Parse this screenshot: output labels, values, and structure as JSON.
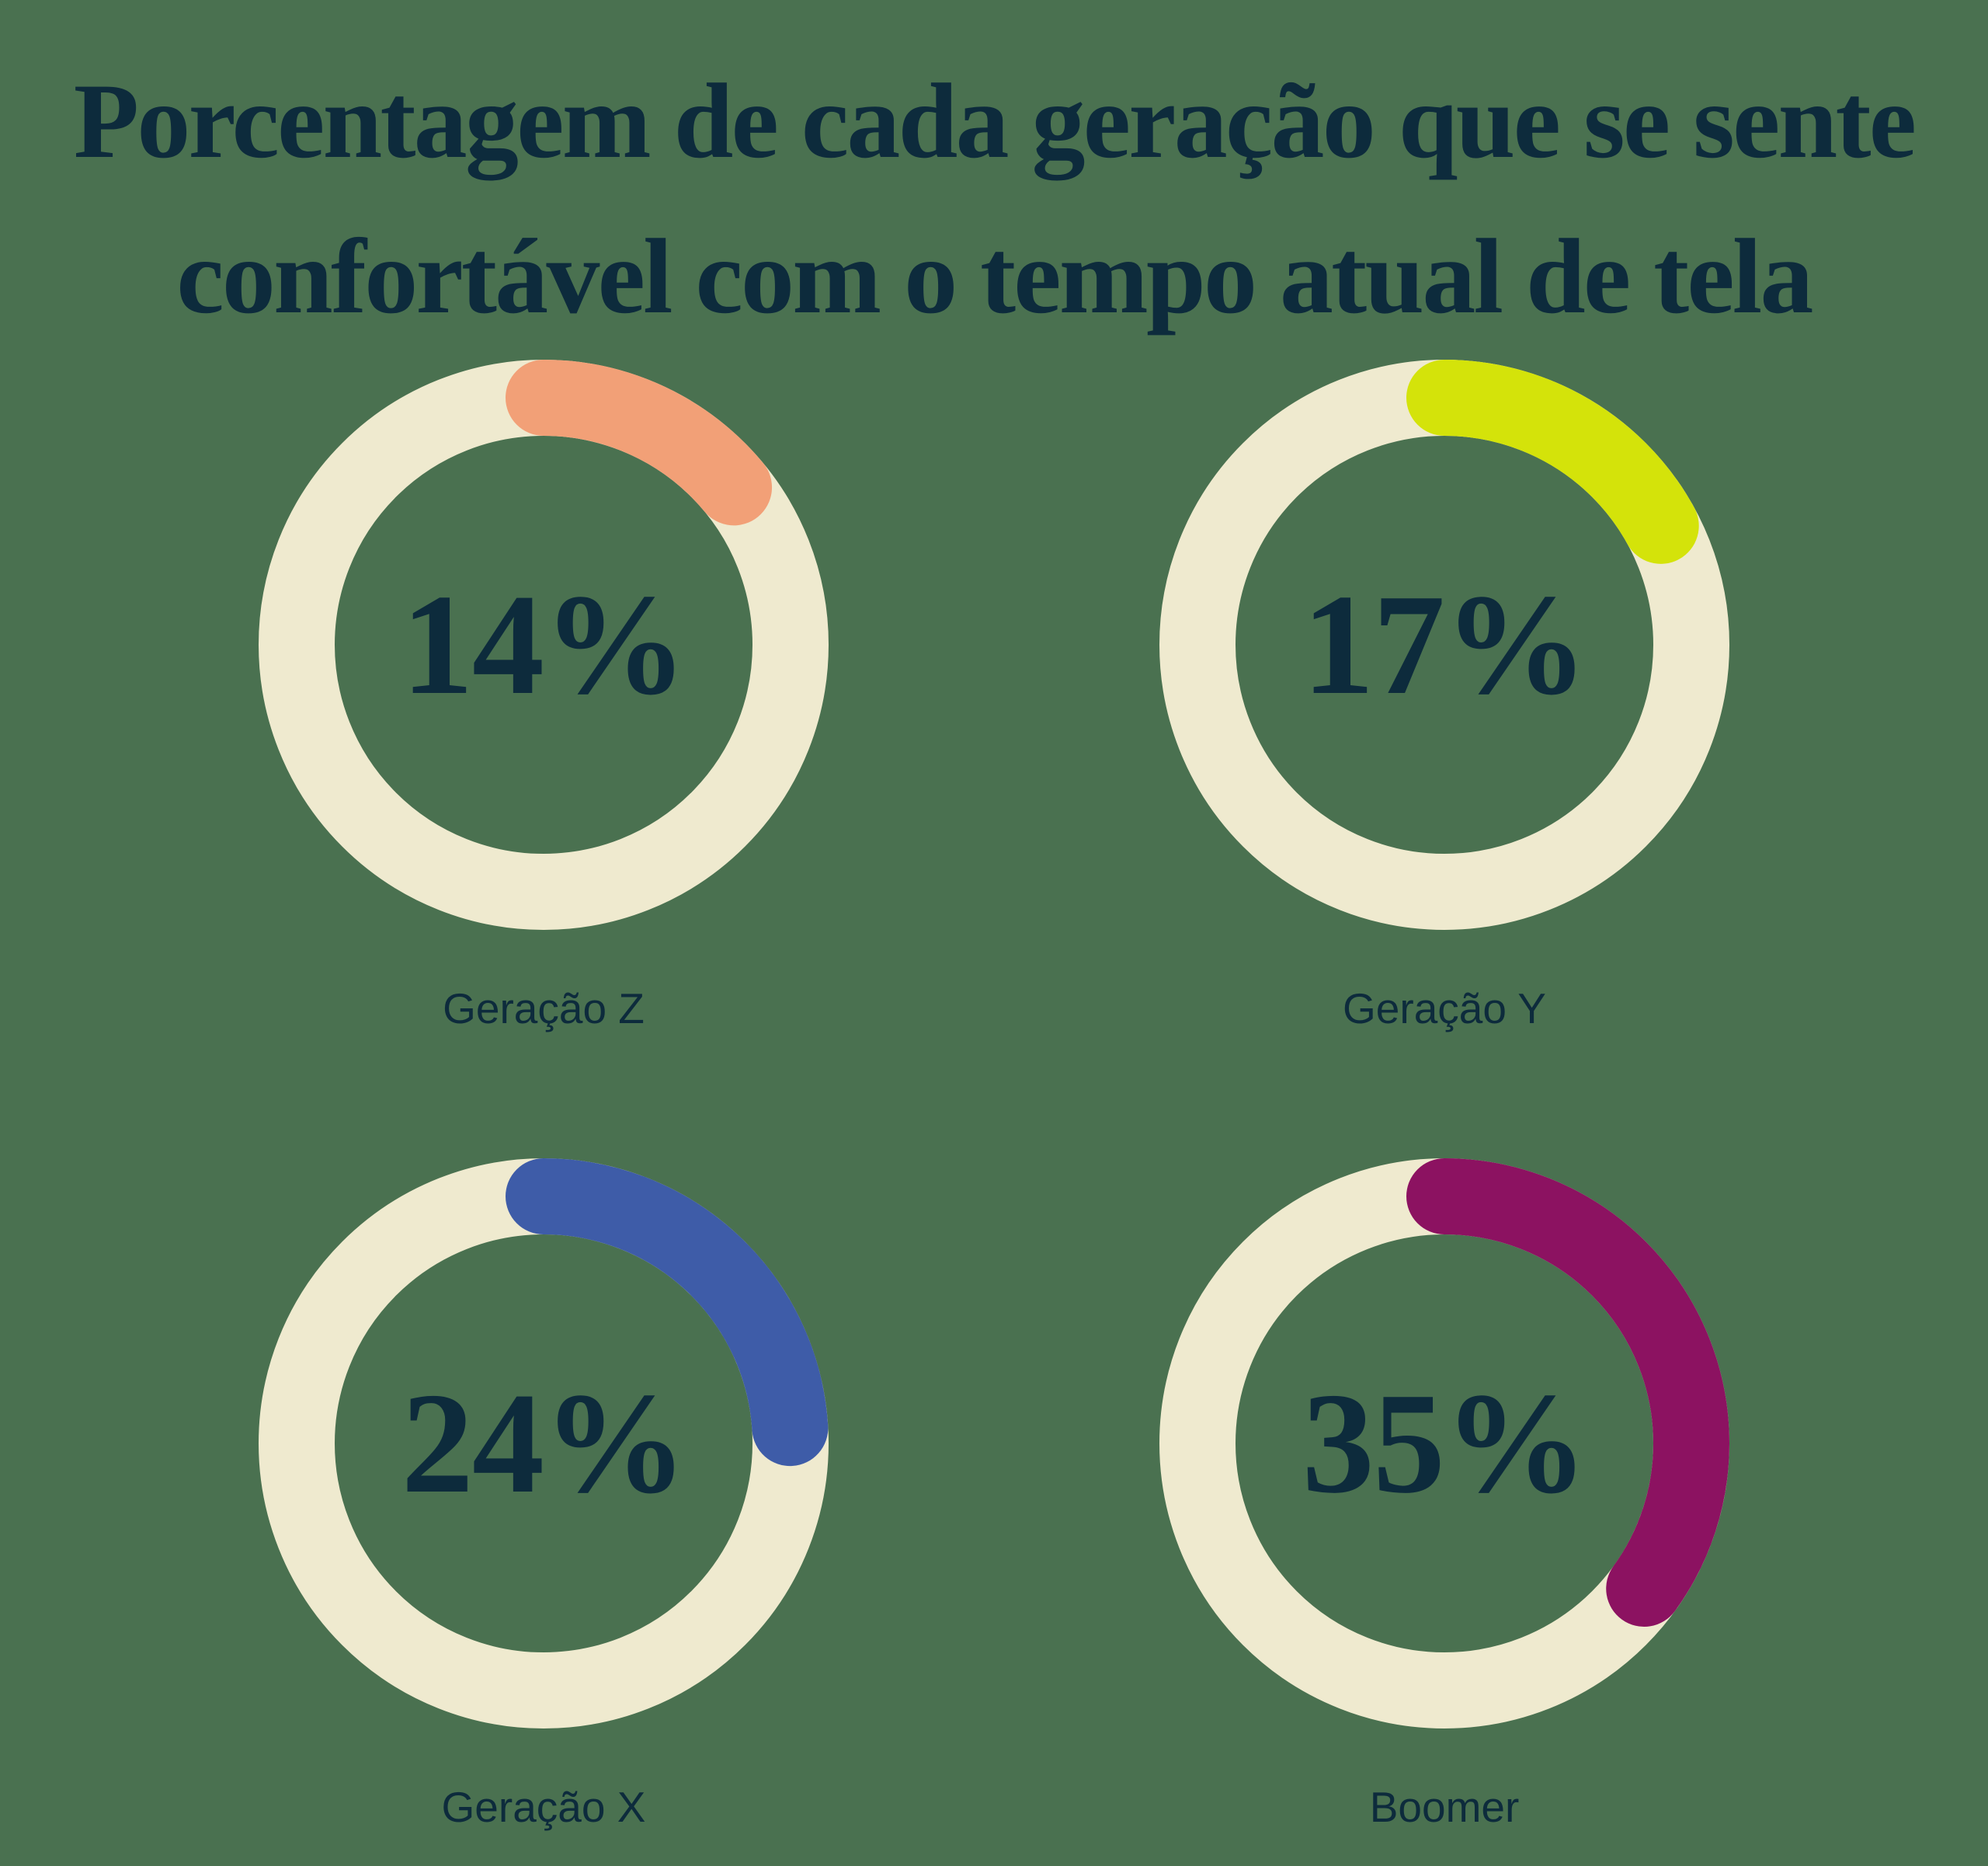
{
  "title": "Porcentagem de cada geração que se sente confortável com o tempo atual de tela",
  "title_lines": [
    "Porcentagem de cada geração que se sente",
    "confortável com o tempo atual de tela"
  ],
  "colors": {
    "background": "#4A7150",
    "ring_base": "#EFEACF",
    "text": "#0D2B3C"
  },
  "chart_data": {
    "type": "donut",
    "title": "Porcentagem de cada geração que se sente confortável com o tempo atual de tela",
    "value_range": [
      0,
      100
    ],
    "start_angle_deg": 0,
    "direction": "clockwise",
    "legend_position": "label-below-each-donut",
    "ring_base_color": "#EFEACF",
    "series": [
      {
        "label": "Geração Z",
        "value": 14,
        "display": "14%",
        "color": "#F2A077"
      },
      {
        "label": "Geração Y",
        "value": 17,
        "display": "17%",
        "color": "#D4E30A"
      },
      {
        "label": "Geração X",
        "value": 24,
        "display": "24%",
        "color": "#3E5CA8"
      },
      {
        "label": "Boomer",
        "value": 35,
        "display": "35%",
        "color": "#8C1261"
      }
    ]
  }
}
